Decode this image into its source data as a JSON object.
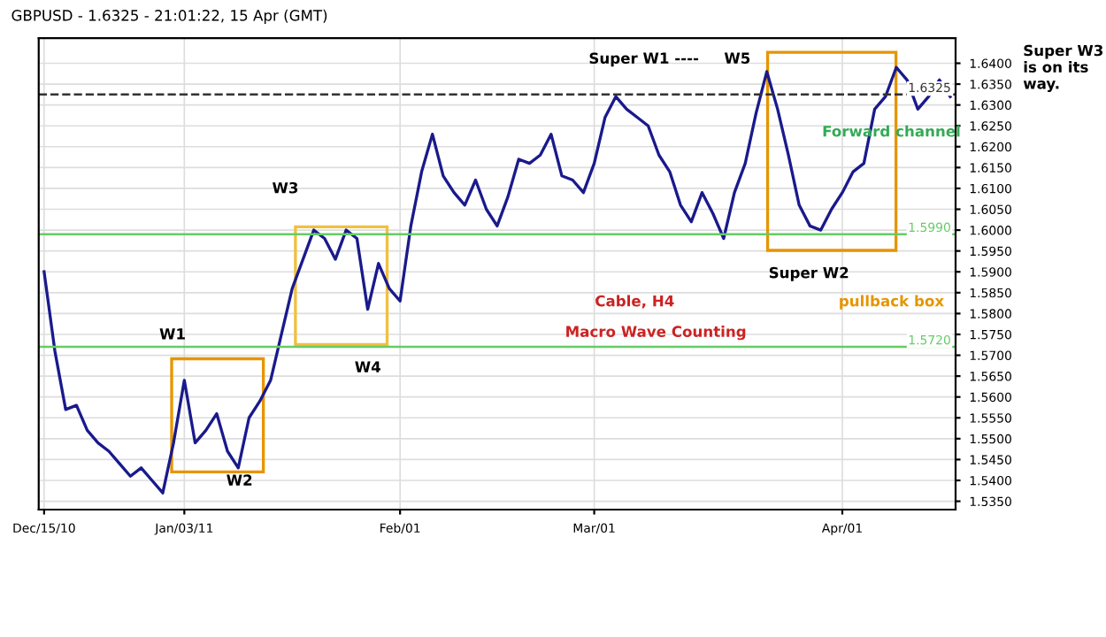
{
  "chart_data": {
    "type": "line",
    "title": "GBPUSD - 1.6325 - 21:01:22, 15 Apr (GMT)",
    "categories": [
      "Dec/15/10",
      null,
      null,
      null,
      null,
      null,
      null,
      null,
      null,
      null,
      null,
      null,
      null,
      "Jan/03/11",
      null,
      null,
      null,
      null,
      null,
      null,
      null,
      null,
      null,
      null,
      null,
      null,
      null,
      null,
      null,
      null,
      null,
      null,
      null,
      "Feb/01",
      null,
      null,
      null,
      null,
      null,
      null,
      null,
      null,
      null,
      null,
      null,
      null,
      null,
      null,
      null,
      null,
      null,
      "Mar/01",
      null,
      null,
      null,
      null,
      null,
      null,
      null,
      null,
      null,
      null,
      null,
      null,
      null,
      null,
      null,
      null,
      null,
      null,
      null,
      null,
      null,
      null,
      "Apr/01",
      null,
      null,
      null,
      null,
      null,
      null,
      null,
      null,
      null,
      null
    ],
    "series": [
      {
        "color": "#1a1a8c",
        "values": [
          1.59,
          1.571,
          1.557,
          1.558,
          1.552,
          1.549,
          1.547,
          1.544,
          1.541,
          1.543,
          1.54,
          1.537,
          1.549,
          1.564,
          1.549,
          1.552,
          1.556,
          1.547,
          1.543,
          1.555,
          1.559,
          1.564,
          1.575,
          1.586,
          1.593,
          1.6,
          1.598,
          1.593,
          1.6,
          1.598,
          1.581,
          1.592,
          1.586,
          1.583,
          1.601,
          1.614,
          1.623,
          1.613,
          1.609,
          1.606,
          1.612,
          1.605,
          1.601,
          1.608,
          1.617,
          1.616,
          1.618,
          1.623,
          1.613,
          1.612,
          1.609,
          1.616,
          1.627,
          1.632,
          1.629,
          1.627,
          1.625,
          1.618,
          1.614,
          1.606,
          1.602,
          1.609,
          1.604,
          1.598,
          1.609,
          1.616,
          1.628,
          1.638,
          1.629,
          1.618,
          1.606,
          1.601,
          1.6,
          1.605,
          1.609,
          1.614,
          1.616,
          1.629,
          1.632,
          1.639,
          1.636,
          1.629,
          1.632,
          1.636,
          1.632
        ]
      }
    ],
    "ylim": [
      1.533,
      1.646
    ],
    "yticks": [
      {
        "value": 1.535,
        "label": "1.5350"
      },
      {
        "value": 1.54,
        "label": "1.5400"
      },
      {
        "value": 1.545,
        "label": "1.5450"
      },
      {
        "value": 1.55,
        "label": "1.5500"
      },
      {
        "value": 1.555,
        "label": "1.5550"
      },
      {
        "value": 1.56,
        "label": "1.5600"
      },
      {
        "value": 1.565,
        "label": "1.5650"
      },
      {
        "value": 1.57,
        "label": "1.5700"
      },
      {
        "value": 1.575,
        "label": "1.5750"
      },
      {
        "value": 1.58,
        "label": "1.5800"
      },
      {
        "value": 1.585,
        "label": "1.5850"
      },
      {
        "value": 1.59,
        "label": "1.5900"
      },
      {
        "value": 1.595,
        "label": "1.5950"
      },
      {
        "value": 1.6,
        "label": "1.6000"
      },
      {
        "value": 1.605,
        "label": "1.6050"
      },
      {
        "value": 1.61,
        "label": "1.6100"
      },
      {
        "value": 1.615,
        "label": "1.6150"
      },
      {
        "value": 1.62,
        "label": "1.6200"
      },
      {
        "value": 1.625,
        "label": "1.6250"
      },
      {
        "value": 1.63,
        "label": "1.6300"
      },
      {
        "value": 1.635,
        "label": "1.6350"
      },
      {
        "value": 1.64,
        "label": "1.6400"
      }
    ],
    "ref_lines": [
      {
        "axis": "y",
        "value": 1.599,
        "label": "1.5990",
        "color": "#66cc66"
      },
      {
        "axis": "y",
        "value": 1.572,
        "label": "1.5720",
        "color": "#66cc66"
      },
      {
        "axis": "y",
        "value": 1.6325,
        "label": "1.6325",
        "color": "#333333",
        "line_style": "dashed"
      }
    ],
    "annotations": [
      "W1",
      "W2",
      "W3",
      "W4",
      "W5",
      "Super W1 ----",
      "Super W2",
      "pullback box",
      "Forward channel",
      "Cable, H4",
      "Macro Wave Counting",
      "Super W3\nis on its\nway."
    ],
    "grid": true,
    "marker": "none",
    "line_style": "solid"
  }
}
